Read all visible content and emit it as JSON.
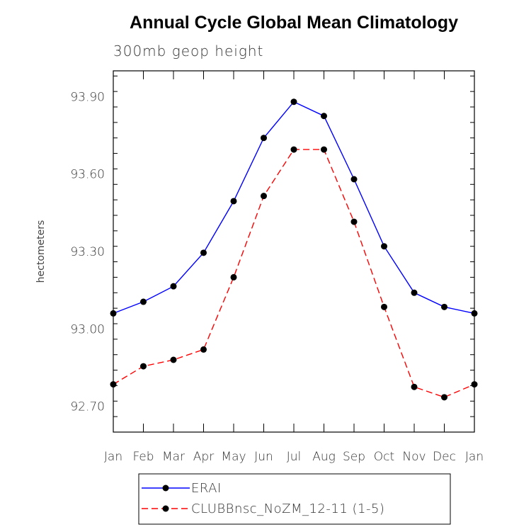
{
  "chart_data": {
    "type": "line",
    "title": "Annual Cycle Global Mean Climatology",
    "subtitle": "300mb geop height",
    "ylabel": "hectometers",
    "xlabel": "",
    "categories": [
      "Jan",
      "Feb",
      "Mar",
      "Apr",
      "May",
      "Jun",
      "Jul",
      "Aug",
      "Sep",
      "Oct",
      "Nov",
      "Dec",
      "Jan"
    ],
    "ylim": [
      92.6,
      94.0
    ],
    "yticks": [
      92.7,
      93.0,
      93.3,
      93.6,
      93.9
    ],
    "ytick_labels": [
      "92.70",
      "93.00",
      "93.30",
      "93.60",
      "93.90"
    ],
    "series": [
      {
        "name": "ERAI",
        "color": "#0000ff",
        "dash": "solid",
        "values": [
          93.06,
          93.105,
          93.165,
          93.295,
          93.495,
          93.74,
          93.88,
          93.825,
          93.58,
          93.32,
          93.14,
          93.085,
          93.06
        ]
      },
      {
        "name": "CLUBBnsc_NoZM_12-11 (1-5)",
        "color": "#ff0000",
        "dash": "dashed",
        "values": [
          92.785,
          92.855,
          92.88,
          92.92,
          93.2,
          93.515,
          93.695,
          93.695,
          93.415,
          93.085,
          92.775,
          92.735,
          92.785
        ]
      }
    ]
  }
}
